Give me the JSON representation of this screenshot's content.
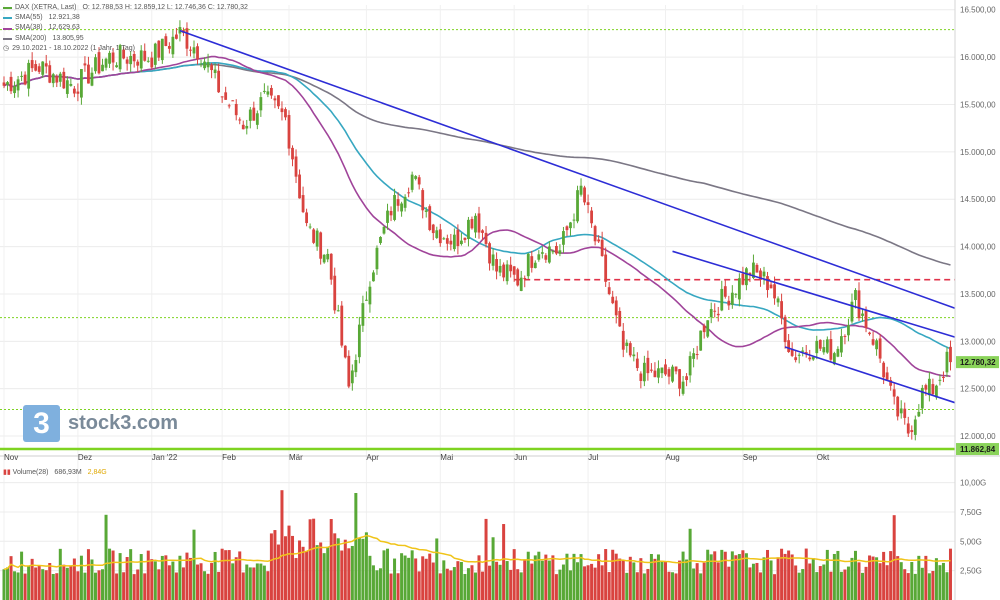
{
  "legend": {
    "instrument": "DAX (XETRA, Last)",
    "ohlc": "O: 12.788,53  H: 12.859,12  L: 12.746,36  C: 12.780,32",
    "items": [
      {
        "label": "SMA(55)",
        "value": "12.921,38",
        "color": "#37a7c1"
      },
      {
        "label": "SMA(38)",
        "value": "12.629,63",
        "color": "#a0449a"
      },
      {
        "label": "SMA(200)",
        "value": "13.805,95",
        "color": "#7b7785"
      }
    ],
    "period": "29.10.2021 - 18.10.2022  (1 Jahr, 1 Tag)"
  },
  "volume_legend": {
    "label": "Volume(28)",
    "value": "686,93M",
    "avg": "2,84G"
  },
  "logo": {
    "mark": "3",
    "text": "stock3.com"
  },
  "price_badge": "12.780,32",
  "support_badge": "11.862,84",
  "colors": {
    "up": "#58a836",
    "down": "#d9433f",
    "trend": "#2d2dd6",
    "support": "#7ed321",
    "resistance_dashed": "#e0334a",
    "volume_avg": "#f0c419"
  },
  "chart_data": {
    "type": "candlestick",
    "x_ticks": [
      "Nov",
      "Dez",
      "Jan '22",
      "Feb",
      "Mär",
      "Apr",
      "Mai",
      "Jun",
      "Jul",
      "Aug",
      "Sep",
      "Okt"
    ],
    "y_ticks": [
      "16.500,00",
      "16.000,00",
      "15.500,00",
      "15.000,00",
      "14.500,00",
      "14.000,00",
      "13.500,00",
      "13.000,00",
      "12.500,00",
      "12.000,00"
    ],
    "ylim": [
      11800,
      16550
    ],
    "horizontal_levels": [
      16290,
      13250,
      12280,
      11862.84
    ],
    "dashed_resistance": 13650,
    "trendlines": [
      {
        "from": [
          "Jan '22",
          16280
        ],
        "to": [
          "Okt",
          13380
        ]
      },
      {
        "from": [
          "Aug",
          13950
        ],
        "to": [
          "Okt",
          13070
        ]
      },
      {
        "from": [
          "Sep",
          12940
        ],
        "to": [
          "Okt",
          12380
        ]
      }
    ],
    "series": [
      {
        "name": "SMA(55)",
        "last": 12921.38
      },
      {
        "name": "SMA(38)",
        "last": 12629.63
      },
      {
        "name": "SMA(200)",
        "last": 13805.95
      }
    ],
    "close_anchors": [
      [
        0,
        15700
      ],
      [
        10,
        15900
      ],
      [
        20,
        15700
      ],
      [
        30,
        16000
      ],
      [
        42,
        16000
      ],
      [
        50,
        16250
      ],
      [
        56,
        16050
      ],
      [
        62,
        15600
      ],
      [
        68,
        15300
      ],
      [
        74,
        15550
      ],
      [
        80,
        15350
      ],
      [
        86,
        14200
      ],
      [
        92,
        13900
      ],
      [
        98,
        12500
      ],
      [
        104,
        13700
      ],
      [
        110,
        14400
      ],
      [
        116,
        14750
      ],
      [
        122,
        14200
      ],
      [
        128,
        14050
      ],
      [
        134,
        14350
      ],
      [
        140,
        13750
      ],
      [
        146,
        13650
      ],
      [
        152,
        14000
      ],
      [
        158,
        13950
      ],
      [
        164,
        14600
      ],
      [
        170,
        13800
      ],
      [
        176,
        12900
      ],
      [
        182,
        12650
      ],
      [
        188,
        12650
      ],
      [
        194,
        12600
      ],
      [
        200,
        13300
      ],
      [
        206,
        13500
      ],
      [
        212,
        13750
      ],
      [
        218,
        13600
      ],
      [
        224,
        12850
      ],
      [
        230,
        12950
      ],
      [
        236,
        12900
      ],
      [
        242,
        13450
      ],
      [
        248,
        12950
      ],
      [
        253,
        12300
      ],
      [
        257,
        12050
      ],
      [
        261,
        12450
      ],
      [
        264,
        12500
      ],
      [
        268,
        12780
      ]
    ],
    "volume": {
      "y_ticks": [
        "10,00G",
        "7,50G",
        "5,00G",
        "2,50G"
      ],
      "ylim": [
        0,
        11500000000
      ],
      "avg_label": "2,84G"
    }
  }
}
